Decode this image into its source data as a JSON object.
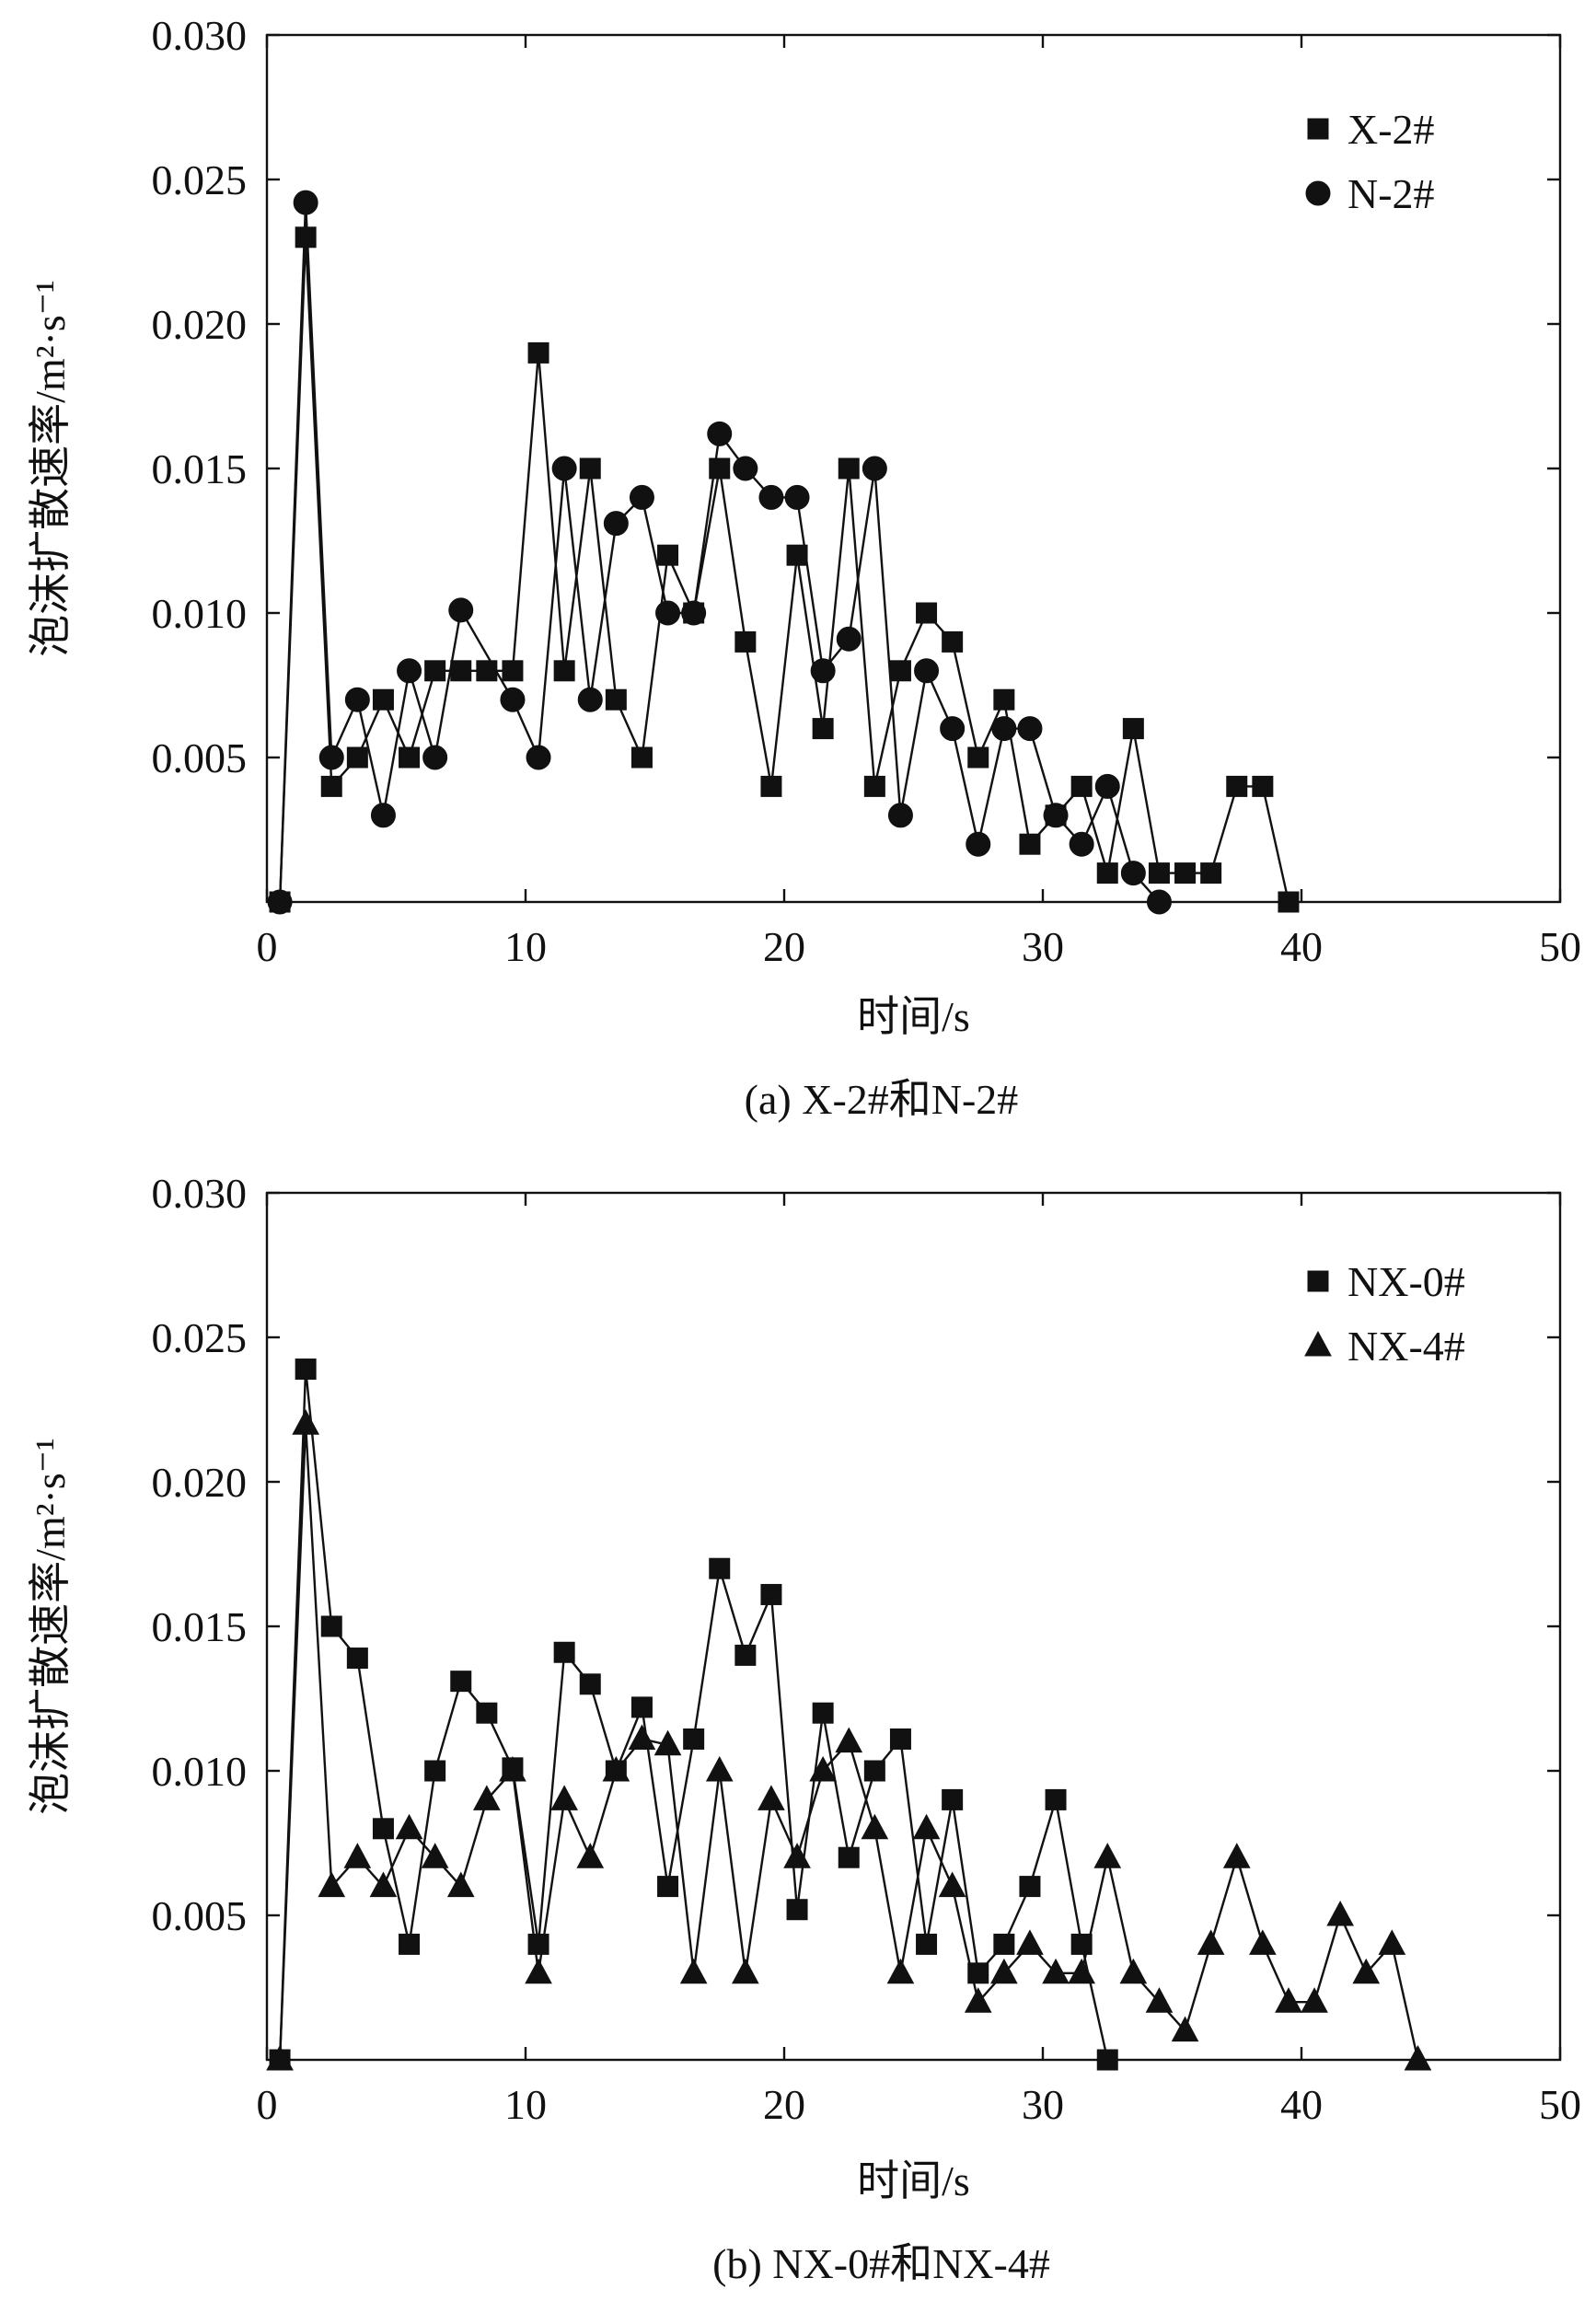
{
  "chart_data": [
    {
      "id": "a",
      "type": "line",
      "caption": "(a) X-2#和N-2#",
      "xlabel": "时间/s",
      "ylabel": "泡沫扩散速率/m²·s⁻¹",
      "xlim": [
        0,
        50
      ],
      "ylim": [
        0,
        0.03
      ],
      "x_ticks": [
        0,
        10,
        20,
        30,
        40,
        50
      ],
      "y_ticks": [
        0.005,
        0.01,
        0.015,
        0.02,
        0.025,
        0.03
      ],
      "y_tick_labels": [
        "0.005",
        "0.010",
        "0.015",
        "0.020",
        "0.025",
        "0.030"
      ],
      "x_tick_labels": [
        "0",
        "10",
        "20",
        "30",
        "40",
        "50"
      ],
      "grid": false,
      "legend_position": "top-right",
      "series": [
        {
          "name": "X-2#",
          "marker": "square",
          "x": [
            0.5,
            1.5,
            2.5,
            3.5,
            4.5,
            5.5,
            6.5,
            7.5,
            8.5,
            9.5,
            10.5,
            11.5,
            12.5,
            13.5,
            14.5,
            15.5,
            16.5,
            17.5,
            18.5,
            19.5,
            20.5,
            21.5,
            22.5,
            23.5,
            24.5,
            25.5,
            26.5,
            27.5,
            28.5,
            29.5,
            30.5,
            31.5,
            32.5,
            33.5,
            34.5,
            35.5,
            36.5,
            37.5,
            38.5,
            39.5
          ],
          "y": [
            0.0,
            0.023,
            0.004,
            0.005,
            0.007,
            0.005,
            0.008,
            0.008,
            0.008,
            0.008,
            0.019,
            0.008,
            0.015,
            0.007,
            0.005,
            0.012,
            0.01,
            0.015,
            0.009,
            0.004,
            0.012,
            0.006,
            0.015,
            0.004,
            0.008,
            0.01,
            0.009,
            0.005,
            0.007,
            0.002,
            0.003,
            0.004,
            0.001,
            0.006,
            0.001,
            0.001,
            0.001,
            0.004,
            0.004,
            0.0
          ]
        },
        {
          "name": "N-2#",
          "marker": "circle",
          "x": [
            0.5,
            1.5,
            2.5,
            3.5,
            4.5,
            5.5,
            6.5,
            7.5,
            9.5,
            10.5,
            11.5,
            12.5,
            13.5,
            14.5,
            15.5,
            16.5,
            17.5,
            18.5,
            19.5,
            20.5,
            21.5,
            22.5,
            23.5,
            24.5,
            25.5,
            26.5,
            27.5,
            28.5,
            29.5,
            30.5,
            31.5,
            32.5,
            33.5,
            34.5
          ],
          "y": [
            0.0,
            0.0242,
            0.005,
            0.007,
            0.003,
            0.008,
            0.005,
            0.0101,
            0.007,
            0.005,
            0.015,
            0.007,
            0.0131,
            0.014,
            0.01,
            0.01,
            0.0162,
            0.015,
            0.014,
            0.014,
            0.008,
            0.0091,
            0.015,
            0.003,
            0.008,
            0.006,
            0.002,
            0.006,
            0.006,
            0.003,
            0.002,
            0.004,
            0.001,
            0.0
          ]
        }
      ]
    },
    {
      "id": "b",
      "type": "line",
      "caption": "(b) NX-0#和NX-4#",
      "xlabel": "时间/s",
      "ylabel": "泡沫扩散速率/m²·s⁻¹",
      "xlim": [
        0,
        50
      ],
      "ylim": [
        0,
        0.03
      ],
      "x_ticks": [
        0,
        10,
        20,
        30,
        40,
        50
      ],
      "y_ticks": [
        0.005,
        0.01,
        0.015,
        0.02,
        0.025,
        0.03
      ],
      "y_tick_labels": [
        "0.005",
        "0.010",
        "0.015",
        "0.020",
        "0.025",
        "0.030"
      ],
      "x_tick_labels": [
        "0",
        "10",
        "20",
        "30",
        "40",
        "50"
      ],
      "grid": false,
      "legend_position": "top-right",
      "series": [
        {
          "name": "NX-0#",
          "marker": "square",
          "x": [
            0.5,
            1.5,
            2.5,
            3.5,
            4.5,
            5.5,
            6.5,
            7.5,
            8.5,
            9.5,
            10.5,
            11.5,
            12.5,
            13.5,
            14.5,
            15.5,
            16.5,
            17.5,
            18.5,
            19.5,
            20.5,
            21.5,
            22.5,
            23.5,
            24.5,
            25.5,
            26.5,
            27.5,
            28.5,
            29.5,
            30.5,
            31.5,
            32.5
          ],
          "y": [
            0.0,
            0.0239,
            0.015,
            0.0139,
            0.008,
            0.004,
            0.01,
            0.0131,
            0.012,
            0.0101,
            0.004,
            0.0141,
            0.013,
            0.01,
            0.0122,
            0.006,
            0.0111,
            0.017,
            0.014,
            0.0161,
            0.0052,
            0.012,
            0.007,
            0.01,
            0.0111,
            0.004,
            0.009,
            0.003,
            0.004,
            0.006,
            0.009,
            0.004,
            0.0
          ]
        },
        {
          "name": "NX-4#",
          "marker": "triangle",
          "x": [
            0.5,
            1.5,
            2.5,
            3.5,
            4.5,
            5.5,
            6.5,
            7.5,
            8.5,
            9.5,
            10.5,
            11.5,
            12.5,
            13.5,
            14.5,
            15.5,
            16.5,
            17.5,
            18.5,
            19.5,
            20.5,
            21.5,
            22.5,
            23.5,
            24.5,
            25.5,
            26.5,
            27.5,
            28.5,
            29.5,
            30.5,
            31.5,
            32.5,
            33.5,
            34.5,
            35.5,
            36.5,
            37.5,
            38.5,
            39.5,
            40.5,
            41.5,
            42.5,
            43.5,
            44.5
          ],
          "y": [
            0.0,
            0.022,
            0.006,
            0.007,
            0.006,
            0.008,
            0.007,
            0.006,
            0.009,
            0.01,
            0.003,
            0.009,
            0.007,
            0.01,
            0.0111,
            0.0109,
            0.003,
            0.01,
            0.003,
            0.009,
            0.007,
            0.01,
            0.011,
            0.008,
            0.003,
            0.008,
            0.006,
            0.002,
            0.003,
            0.004,
            0.003,
            0.003,
            0.007,
            0.003,
            0.002,
            0.001,
            0.004,
            0.007,
            0.004,
            0.002,
            0.002,
            0.005,
            0.003,
            0.004,
            0.0
          ]
        }
      ]
    }
  ]
}
